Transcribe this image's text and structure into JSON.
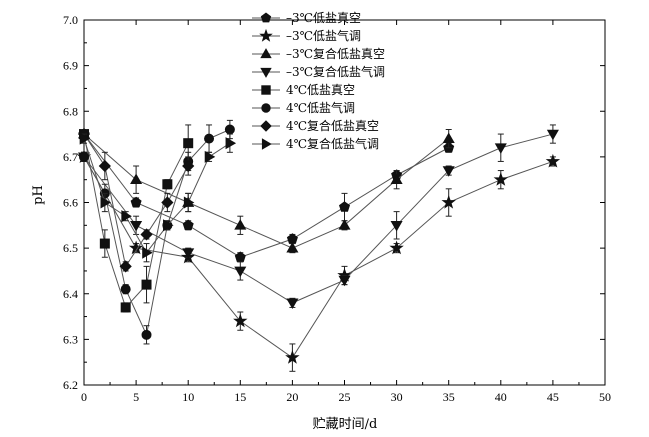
{
  "chart_data": {
    "type": "line",
    "title": "",
    "xlabel": "贮藏时间/d",
    "ylabel": "pH",
    "xlim": [
      0,
      50
    ],
    "ylim": [
      6.2,
      7.0
    ],
    "x_ticks": [
      "0",
      "5",
      "10",
      "15",
      "20",
      "25",
      "30",
      "35",
      "40",
      "45",
      "50"
    ],
    "y_ticks": [
      "6.2",
      "6.3",
      "6.4",
      "6.5",
      "6.6",
      "6.7",
      "6.8",
      "6.9",
      "7.0"
    ],
    "grid": false,
    "legend_position": "top-center",
    "series": [
      {
        "name": "–3℃低盐真空",
        "marker": "pentagon",
        "x": [
          0,
          5,
          10,
          15,
          20,
          25,
          30,
          35
        ],
        "y": [
          6.75,
          6.6,
          6.55,
          6.48,
          6.52,
          6.59,
          6.66,
          6.72
        ],
        "err": [
          0.01,
          0.01,
          0.01,
          0.01,
          0.01,
          0.03,
          0.01,
          0.01
        ]
      },
      {
        "name": "–3℃低盐气调",
        "marker": "star",
        "x": [
          0,
          5,
          10,
          15,
          20,
          25,
          30,
          35,
          40,
          45
        ],
        "y": [
          6.7,
          6.5,
          6.48,
          6.34,
          6.26,
          6.44,
          6.5,
          6.6,
          6.65,
          6.69
        ],
        "err": [
          0.01,
          0.01,
          0.01,
          0.02,
          0.03,
          0.02,
          0.01,
          0.03,
          0.02,
          0.01
        ]
      },
      {
        "name": "–3℃复合低盐真空",
        "marker": "triangle-up",
        "x": [
          0,
          5,
          10,
          15,
          20,
          25,
          30,
          35
        ],
        "y": [
          6.75,
          6.65,
          6.6,
          6.55,
          6.5,
          6.55,
          6.65,
          6.74
        ],
        "err": [
          0.01,
          0.03,
          0.02,
          0.02,
          0.01,
          0.01,
          0.02,
          0.02
        ]
      },
      {
        "name": "–3℃复合低盐气调",
        "marker": "triangle-down",
        "x": [
          0,
          5,
          10,
          15,
          20,
          25,
          30,
          35,
          40,
          45
        ],
        "y": [
          6.7,
          6.55,
          6.49,
          6.45,
          6.38,
          6.43,
          6.55,
          6.67,
          6.72,
          6.75
        ],
        "err": [
          0.01,
          0.02,
          0.01,
          0.02,
          0.01,
          0.01,
          0.03,
          0.01,
          0.03,
          0.02
        ]
      },
      {
        "name": "4℃低盐真空",
        "marker": "square",
        "x": [
          0,
          2,
          4,
          6,
          8,
          10
        ],
        "y": [
          6.75,
          6.51,
          6.37,
          6.42,
          6.64,
          6.73
        ],
        "err": [
          0.01,
          0.03,
          0.01,
          0.04,
          0.01,
          0.04
        ]
      },
      {
        "name": "4℃低盐气调",
        "marker": "circle",
        "x": [
          0,
          2,
          4,
          6,
          8,
          10,
          12,
          14
        ],
        "y": [
          6.7,
          6.62,
          6.41,
          6.31,
          6.55,
          6.69,
          6.74,
          6.76
        ],
        "err": [
          0.01,
          0.02,
          0.01,
          0.02,
          0.01,
          0.02,
          0.03,
          0.02
        ]
      },
      {
        "name": "4℃复合低盐真空",
        "marker": "diamond",
        "x": [
          0,
          2,
          4,
          6,
          8,
          10
        ],
        "y": [
          6.75,
          6.68,
          6.46,
          6.53,
          6.6,
          6.68
        ],
        "err": [
          0.01,
          0.03,
          0.01,
          0.01,
          0.02,
          0.02
        ]
      },
      {
        "name": "4℃复合低盐气调",
        "marker": "triangle-right",
        "x": [
          0,
          2,
          4,
          6,
          8,
          10,
          12,
          14
        ],
        "y": [
          6.74,
          6.6,
          6.57,
          6.49,
          6.55,
          6.6,
          6.7,
          6.73
        ],
        "err": [
          0.01,
          0.02,
          0.01,
          0.02,
          0.01,
          0.02,
          0.01,
          0.02
        ]
      }
    ]
  }
}
